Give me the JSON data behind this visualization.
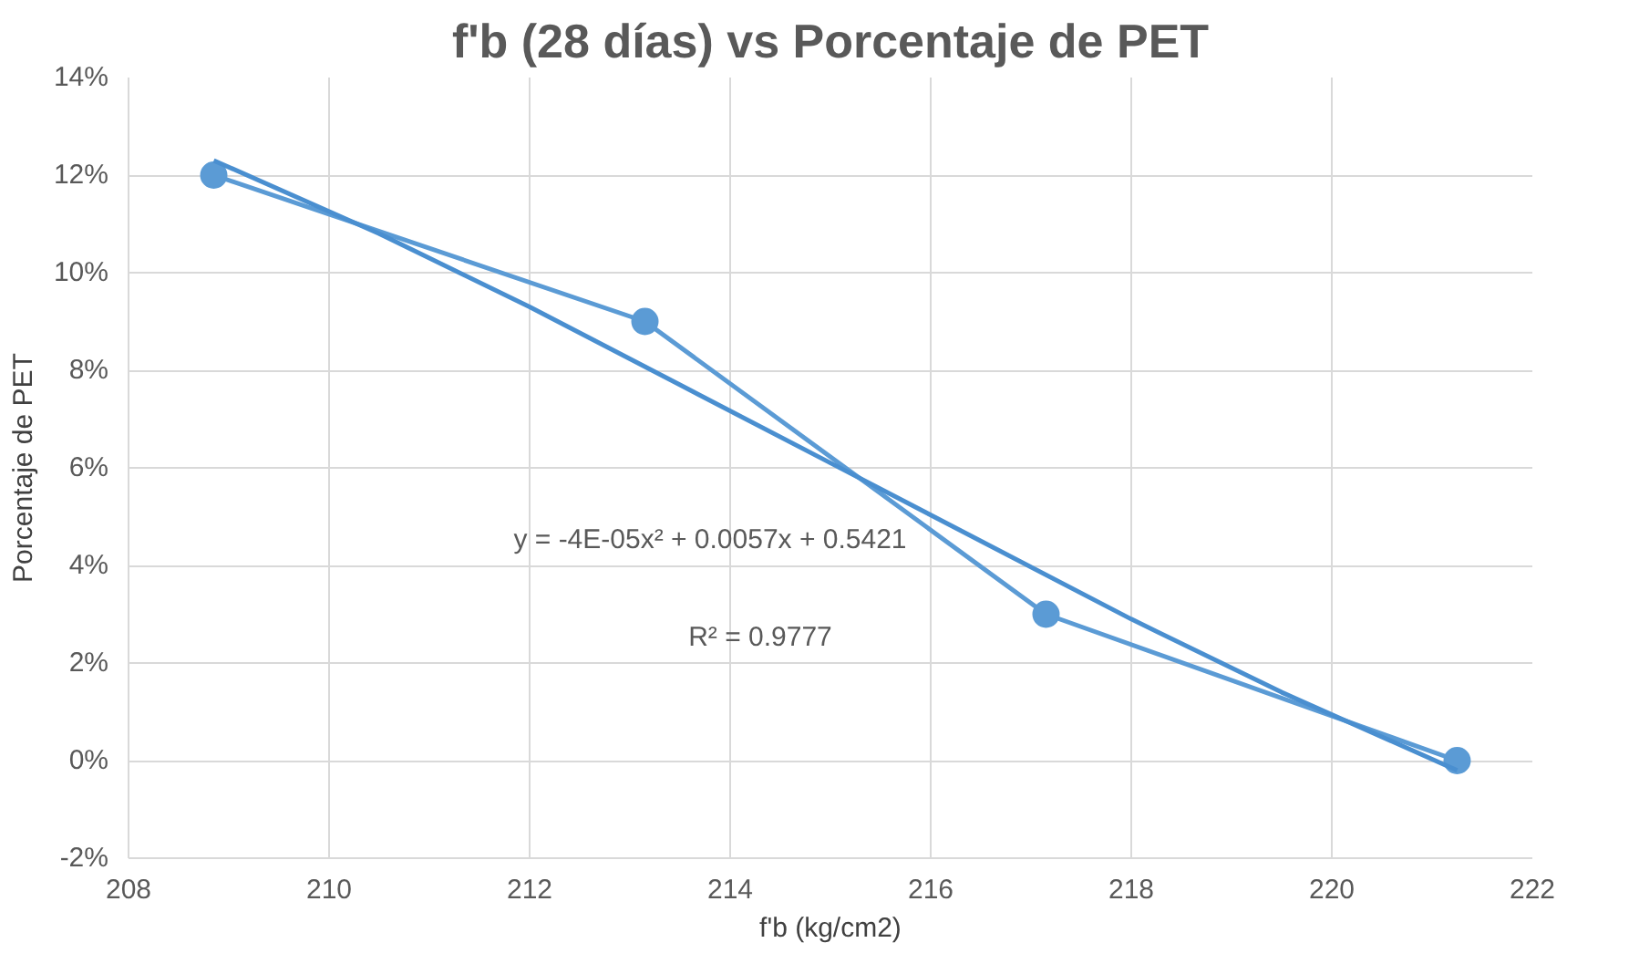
{
  "chart_data": {
    "type": "line",
    "title": "f'b (28 días) vs Porcentaje de PET",
    "xlabel": "f'b (kg/cm2)",
    "ylabel": "Porcentaje de PET",
    "series": [
      {
        "marker": "circle",
        "color": "#5b9bd5",
        "x": [
          208.85,
          213.15,
          217.15,
          221.25
        ],
        "values": [
          0.12,
          0.09,
          0.03,
          0.0
        ]
      },
      {
        "marker": "none",
        "color": "#4a8fd0",
        "x": [
          208.85,
          210.5,
          212,
          213.5,
          215,
          216.5,
          218,
          219.5,
          221.25
        ],
        "values": [
          0.123,
          0.108,
          0.093,
          0.077,
          0.061,
          0.045,
          0.029,
          0.014,
          -0.002
        ]
      }
    ],
    "annotations": [
      "y = -4E-05x² + 0.0057x + 0.5421",
      "R² = 0.9777"
    ],
    "xlim": [
      208,
      222
    ],
    "xticks": [
      208,
      210,
      212,
      214,
      216,
      218,
      220,
      222
    ],
    "ylim": [
      -0.02,
      0.14
    ],
    "yticks": [
      {
        "value": -0.02,
        "label": "-2%"
      },
      {
        "value": 0,
        "label": "0%"
      },
      {
        "value": 0.02,
        "label": "2%"
      },
      {
        "value": 0.04,
        "label": "4%"
      },
      {
        "value": 0.06,
        "label": "6%"
      },
      {
        "value": 0.08,
        "label": "8%"
      },
      {
        "value": 0.1,
        "label": "10%"
      },
      {
        "value": 0.12,
        "label": "12%"
      },
      {
        "value": 0.14,
        "label": "14%"
      }
    ],
    "grid": true
  }
}
